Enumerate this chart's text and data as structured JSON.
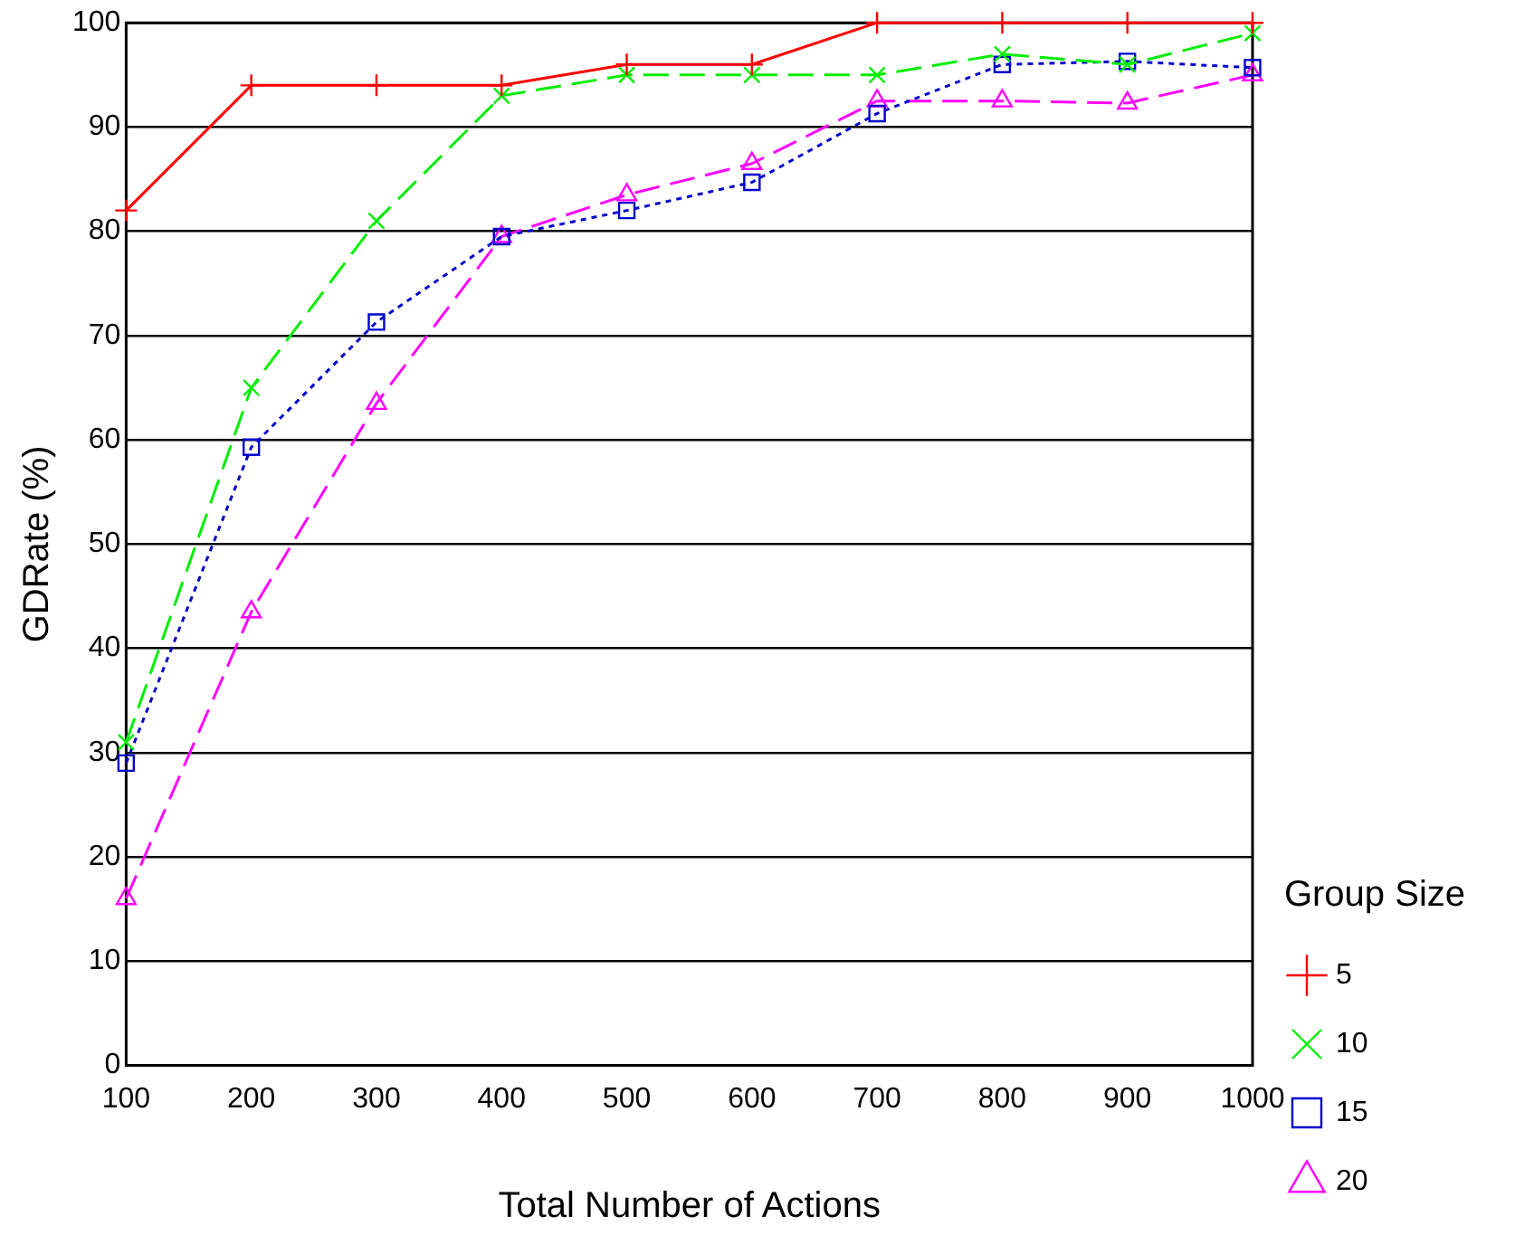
{
  "chart_data": {
    "type": "line",
    "xlabel": "Total Number of Actions",
    "ylabel": "GDRate (%)",
    "legend_title": "Group Size",
    "legend": "right",
    "grid": "y",
    "x": [
      100,
      200,
      300,
      400,
      500,
      600,
      700,
      800,
      900,
      1000
    ],
    "xlim": [
      100,
      1000
    ],
    "xticks": [
      100,
      200,
      300,
      400,
      500,
      600,
      700,
      800,
      900,
      1000
    ],
    "ylim": [
      0,
      100
    ],
    "yticks": [
      0,
      10,
      20,
      30,
      40,
      50,
      60,
      70,
      80,
      90,
      100
    ],
    "series": [
      {
        "name": "5",
        "color": "#ff0000",
        "line_style": "solid",
        "marker": "cross",
        "values": [
          82,
          94,
          94,
          94,
          96,
          96,
          100,
          100,
          100,
          100
        ]
      },
      {
        "name": "10",
        "color": "#00ee00",
        "line_style": "dashed",
        "marker": "x",
        "values": [
          31,
          65,
          81,
          93,
          95,
          95,
          95,
          97,
          96,
          99
        ]
      },
      {
        "name": "15",
        "color": "#0000cc",
        "line_style": "dotted",
        "marker": "square",
        "values": [
          29,
          59.3,
          71.3,
          79.5,
          82,
          84.7,
          91.3,
          96,
          96.3,
          95.7
        ]
      },
      {
        "name": "20",
        "color": "#ff00ff",
        "line_style": "dashed",
        "marker": "triangle",
        "values": [
          16,
          43.5,
          63.5,
          79.5,
          83.5,
          86.5,
          92.5,
          92.5,
          92.3,
          95
        ]
      }
    ]
  }
}
